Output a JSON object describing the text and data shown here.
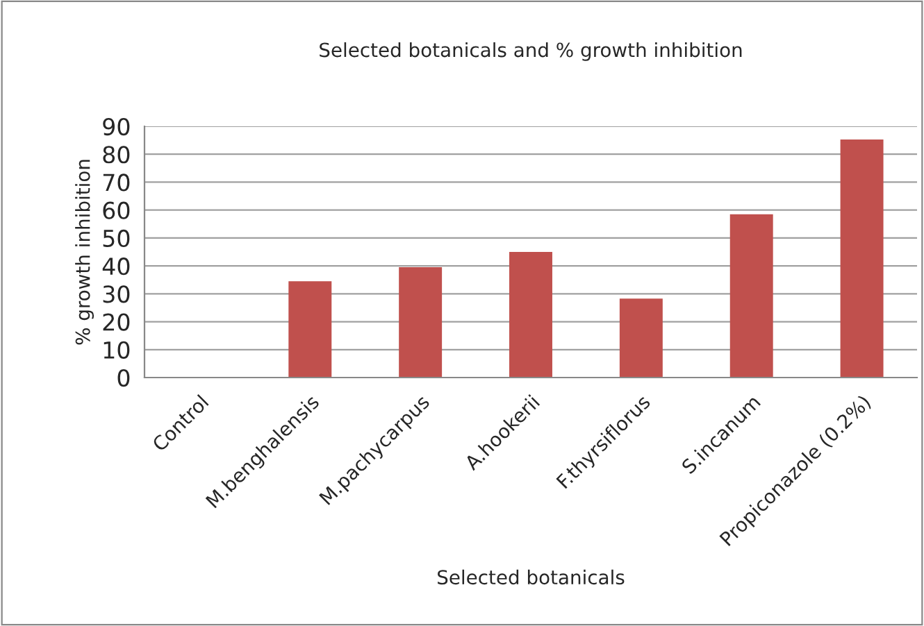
{
  "chart_data": {
    "type": "bar",
    "title": "Selected botanicals and % growth inhibition",
    "xlabel": "Selected botanicals",
    "ylabel": "% growth inhibition",
    "categories": [
      "Control",
      "M.benghalensis",
      "M.pachycarpus",
      "A.hookerii",
      "F.thyrsiflorus",
      "S.incanum",
      "Propiconazole (0.2%)"
    ],
    "values": [
      0,
      34.5,
      39.5,
      45,
      28.3,
      58.5,
      85.3
    ],
    "color": "#c0504d",
    "ylim": [
      0,
      90
    ],
    "yticks": [
      0,
      10,
      20,
      30,
      40,
      50,
      60,
      70,
      80,
      90
    ],
    "grid": "y"
  }
}
